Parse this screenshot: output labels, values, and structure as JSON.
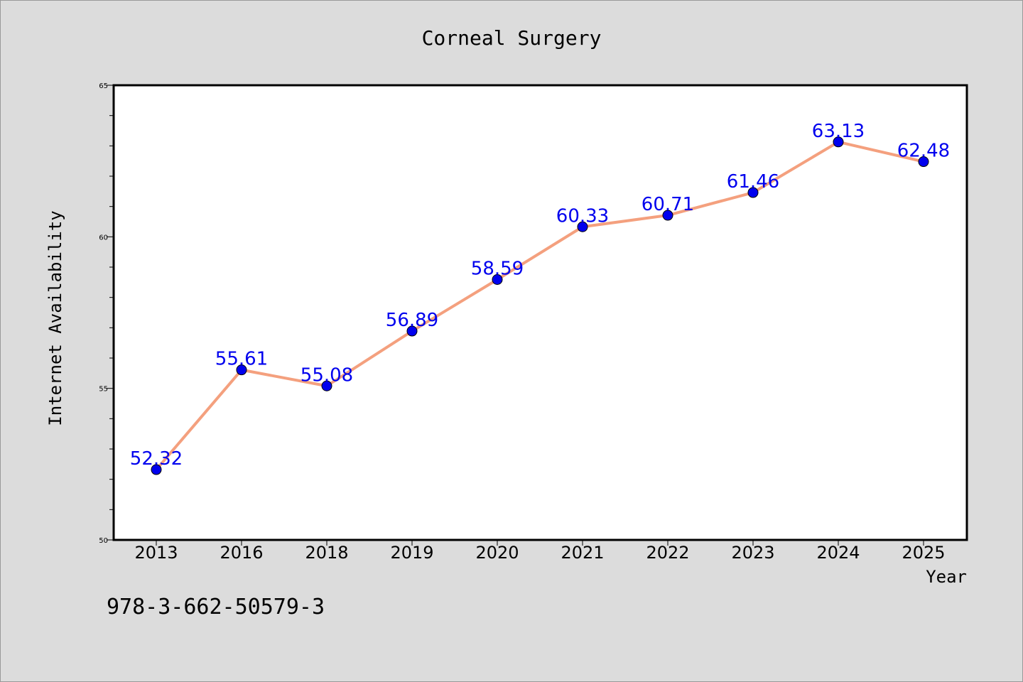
{
  "chart_data": {
    "type": "line",
    "title": "Corneal Surgery",
    "xlabel": "Year",
    "ylabel": "Internet Availability",
    "categories": [
      "2013",
      "2016",
      "2018",
      "2019",
      "2020",
      "2021",
      "2022",
      "2023",
      "2024",
      "2025"
    ],
    "series": [
      {
        "values": [
          52.32,
          55.61,
          55.08,
          56.89,
          58.59,
          60.33,
          60.71,
          61.46,
          63.13,
          62.48
        ],
        "labels": [
          "52.32",
          "55.61",
          "55.08",
          "56.89",
          "58.59",
          "60.33",
          "60.71",
          "61.46",
          "63.13",
          "62.48"
        ],
        "line_color": "#f4a07e",
        "marker_color": "#0000ee",
        "label_color": "#0000ee"
      }
    ],
    "ylim": [
      50,
      65
    ],
    "yticks": [
      "50",
      "55",
      "60",
      "65"
    ],
    "grid": false,
    "legend": "none"
  },
  "footer_text": "978-3-662-50579-3",
  "colors": {
    "background": "#dcdcdc",
    "plot_background": "#ffffff",
    "axis": "#000000"
  }
}
